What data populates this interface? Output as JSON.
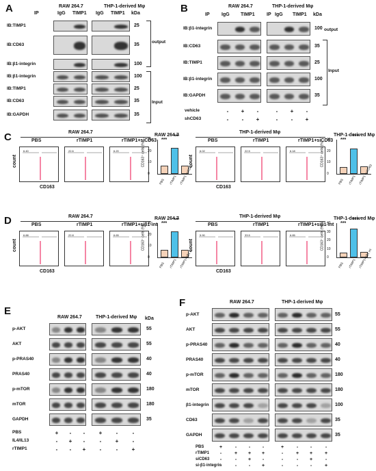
{
  "panels": {
    "A": "A",
    "B": "B",
    "C": "C",
    "D": "D",
    "E": "E",
    "F": "F"
  },
  "A": {
    "cell1": "RAW 264.7",
    "cell2": "THP-1-derived Mφ",
    "ip": "IP",
    "lanes": [
      "IgG",
      "TIMP1",
      "IgG",
      "TIMP1"
    ],
    "kda": "kDa",
    "rows": [
      {
        "label": "IB:TIMP1",
        "kda": "25"
      },
      {
        "label": "IB:CD63",
        "kda": "35"
      },
      {
        "label": "IB:β1-integrin",
        "kda": "100"
      },
      {
        "label": "IB:β1-integrin",
        "kda": "100"
      },
      {
        "label": "IB:TIMP1",
        "kda": "25"
      },
      {
        "label": "IB:CD63",
        "kda": "35"
      },
      {
        "label": "IB:GAPDH",
        "kda": "35"
      }
    ],
    "output": "output",
    "input": "Input"
  },
  "B": {
    "cell1": "RAW 264.7",
    "cell2": "THP-1-derived Mφ",
    "ip": "IP",
    "ip2": "IP",
    "lanes": [
      "IgG",
      "TIMP1",
      "IgG",
      "TIMP1"
    ],
    "kda": "kDa",
    "rows": [
      {
        "label": "IB:β1-integrin",
        "kda": "100"
      },
      {
        "label": "IB:CD63",
        "kda": "35"
      },
      {
        "label": "IB:TIMP1",
        "kda": "25"
      },
      {
        "label": "IB:β1-integrin",
        "kda": "100"
      },
      {
        "label": "IB:GAPDH",
        "kda": "35"
      }
    ],
    "output": "output",
    "input": "Input",
    "treat": [
      {
        "label": "vehicle",
        "marks": [
          "-",
          "+",
          "-",
          "-",
          "+",
          "-"
        ]
      },
      {
        "label": "shCD63",
        "marks": [
          "-",
          "-",
          "+",
          "-",
          "-",
          "+"
        ]
      }
    ]
  },
  "C": {
    "cell1": "RAW 264.7",
    "cell2": "THP-1-derived Mφ",
    "groups": [
      "PBS",
      "rTIMP1",
      "rTIMP1+siCD63"
    ],
    "xlabel": "CD163",
    "ylabel": "count",
    "facs_vals": [
      [
        "6.40",
        "22.6",
        "6.20"
      ],
      [
        "6.02",
        "22.5",
        "6.18"
      ]
    ],
    "bar1": {
      "title": "RAW 264.7",
      "ylabel": "CD163⁺ cells (%)",
      "yticks": [
        "30",
        "20",
        "10",
        "0"
      ],
      "ymax": 30,
      "values": [
        7,
        23,
        7.5
      ],
      "cats": [
        "PBS",
        "rTIMP1",
        "rTIMP1 +siCD63"
      ],
      "sig": [
        "***",
        "***"
      ]
    },
    "bar2": {
      "title": "THP-1-derived Mφ",
      "ylabel": "CD163⁺ cells (%)",
      "yticks": [
        "30",
        "20",
        "10",
        "0"
      ],
      "ymax": 30,
      "values": [
        6,
        22,
        6.5
      ],
      "cats": [
        "PBS",
        "rTIMP1",
        "rTIMP1 +siCD63"
      ],
      "sig": [
        "***",
        "***"
      ]
    }
  },
  "D": {
    "cell1": "RAW 264.7",
    "cell2": "THP-1-derived Mφ",
    "groups": [
      "PBS",
      "rTIMP1",
      "rTIMP1+siβ1-int"
    ],
    "xlabel": "CD163",
    "ylabel": "count",
    "facs_vals": [
      [
        "6.88",
        "22.8",
        "6.65"
      ],
      [
        "5.90",
        "33.5",
        "6.85"
      ]
    ],
    "bar1": {
      "title": "RAW 264.7",
      "ylabel": "CD163⁺ cells (%)",
      "yticks": [
        "30",
        "20",
        "10",
        "0"
      ],
      "ymax": 30,
      "values": [
        6.5,
        23,
        6.8
      ],
      "cats": [
        "PBS",
        "rTIMP1",
        "rTIMP1+siβ1 int"
      ],
      "sig": [
        "***",
        "***"
      ]
    },
    "bar2": {
      "title": "THP-1-derived Mφ",
      "ylabel": "CD163⁺ cells (%)",
      "yticks": [
        "40",
        "30",
        "20",
        "10",
        "0"
      ],
      "ymax": 40,
      "values": [
        6,
        33.5,
        6.8
      ],
      "cats": [
        "PBS",
        "rTIMP1",
        "rTIMP1+siβ1 int"
      ],
      "sig": [
        "***",
        "***"
      ]
    }
  },
  "E": {
    "cell1": "RAW 264.7",
    "cell2": "THP-1-derived Mφ",
    "kda": "kDa",
    "rows": [
      {
        "label": "p-AKT",
        "kda": "55"
      },
      {
        "label": "AKT",
        "kda": "55"
      },
      {
        "label": "p-PRAS40",
        "kda": "40"
      },
      {
        "label": "PRAS40",
        "kda": "40"
      },
      {
        "label": "p-mTOR",
        "kda": "180"
      },
      {
        "label": "mTOR",
        "kda": "180"
      },
      {
        "label": "GAPDH",
        "kda": "35"
      }
    ],
    "treat": [
      {
        "label": "PBS",
        "marks": [
          "+",
          "-",
          "-",
          "+",
          "-",
          "-"
        ]
      },
      {
        "label": "IL4/IL13",
        "marks": [
          "-",
          "+",
          "-",
          "-",
          "+",
          "-"
        ]
      },
      {
        "label": "rTIMP1",
        "marks": [
          "-",
          "-",
          "+",
          "-",
          "-",
          "+"
        ]
      }
    ]
  },
  "F": {
    "cell1": "RAW 264.7",
    "cell2": "THP-1-derived Mφ",
    "rows": [
      {
        "label": "p-AKT",
        "kda": "55"
      },
      {
        "label": "AKT",
        "kda": "55"
      },
      {
        "label": "p-PRAS40",
        "kda": "40"
      },
      {
        "label": "PRAS40",
        "kda": "40"
      },
      {
        "label": "p-mTOR",
        "kda": "180"
      },
      {
        "label": "mTOR",
        "kda": "180"
      },
      {
        "label": "β1-integrin",
        "kda": "100"
      },
      {
        "label": "CD63",
        "kda": "35"
      },
      {
        "label": "GAPDH",
        "kda": "35"
      }
    ],
    "treat": [
      {
        "label": "PBS",
        "marks": [
          "+",
          "-",
          "-",
          "-",
          "+",
          "-",
          "-",
          "-"
        ]
      },
      {
        "label": "rTIMP1",
        "marks": [
          "-",
          "+",
          "+",
          "+",
          "-",
          "+",
          "+",
          "+"
        ]
      },
      {
        "label": "siCD63",
        "marks": [
          "-",
          "-",
          "+",
          "-",
          "-",
          "-",
          "+",
          "-"
        ]
      },
      {
        "label": "si-β1-integrin",
        "marks": [
          "-",
          "-",
          "-",
          "+",
          "-",
          "-",
          "-",
          "+"
        ]
      }
    ]
  }
}
